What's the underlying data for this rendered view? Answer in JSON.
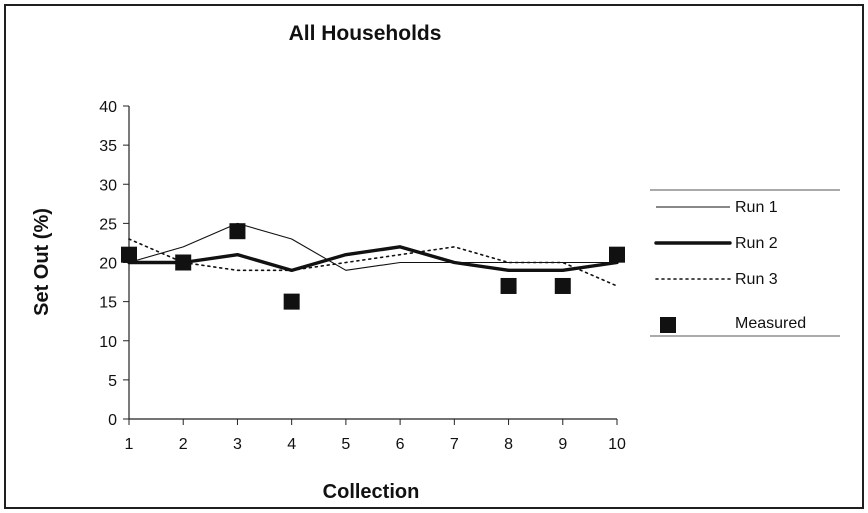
{
  "chart_data": {
    "type": "line",
    "title": "All Households",
    "xlabel": "Collection",
    "ylabel": "Set Out (%)",
    "ylim": [
      0,
      40
    ],
    "yticks": [
      0,
      5,
      10,
      15,
      20,
      25,
      30,
      35,
      40
    ],
    "x": [
      1,
      2,
      3,
      4,
      5,
      6,
      7,
      8,
      9,
      10
    ],
    "grid": false,
    "legend_position": "right",
    "series": [
      {
        "name": "Run 1",
        "style": "thin-solid",
        "color": "#111111",
        "values": [
          20,
          22,
          25,
          23,
          19,
          20,
          20,
          20,
          20,
          20
        ]
      },
      {
        "name": "Run 2",
        "style": "thick-solid",
        "color": "#111111",
        "values": [
          20,
          20,
          21,
          19,
          21,
          22,
          20,
          19,
          19,
          20
        ]
      },
      {
        "name": "Run 3",
        "style": "dotted",
        "color": "#111111",
        "values": [
          23,
          20,
          19,
          19,
          20,
          21,
          22,
          20,
          20,
          17
        ]
      },
      {
        "name": "Measured",
        "style": "square-marker",
        "color": "#111111",
        "values": [
          21,
          20,
          24,
          15,
          null,
          null,
          null,
          17,
          17,
          21
        ]
      }
    ]
  }
}
